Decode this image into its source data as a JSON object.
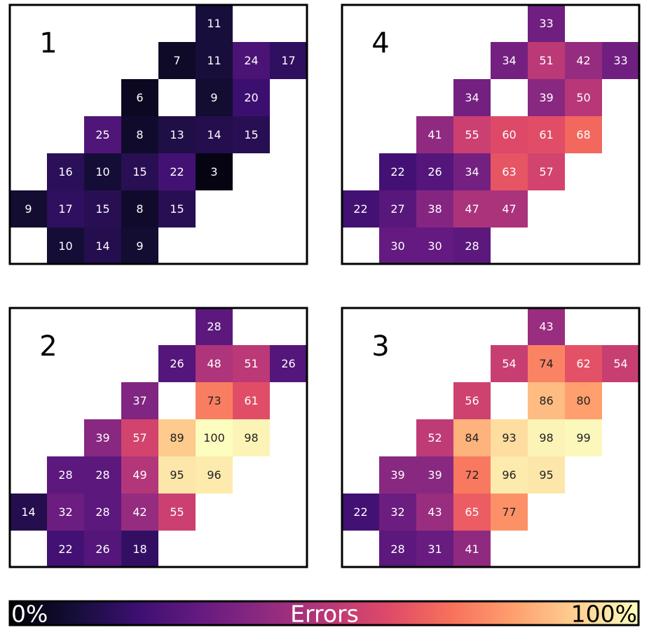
{
  "chart_data": {
    "type": "heatmap",
    "value_range": [
      0,
      100
    ],
    "colormap": "magma",
    "colorbar": {
      "label": "Errors",
      "min_label": "0%",
      "max_label": "100%",
      "colors": [
        "#000004",
        "#140e36",
        "#3b0f70",
        "#641a80",
        "#8c2981",
        "#b73779",
        "#de4968",
        "#f7705c",
        "#fe9f6d",
        "#fecf92",
        "#fcfdbf"
      ]
    },
    "panels": [
      {
        "label": "1",
        "cells": [
          {
            "row": 0,
            "col": 5,
            "value": 11
          },
          {
            "row": 1,
            "col": 4,
            "value": 7
          },
          {
            "row": 1,
            "col": 5,
            "value": 11
          },
          {
            "row": 1,
            "col": 6,
            "value": 24
          },
          {
            "row": 1,
            "col": 7,
            "value": 17
          },
          {
            "row": 2,
            "col": 3,
            "value": 6
          },
          {
            "row": 2,
            "col": 5,
            "value": 9
          },
          {
            "row": 2,
            "col": 6,
            "value": 20
          },
          {
            "row": 3,
            "col": 2,
            "value": 25
          },
          {
            "row": 3,
            "col": 3,
            "value": 8
          },
          {
            "row": 3,
            "col": 4,
            "value": 13
          },
          {
            "row": 3,
            "col": 5,
            "value": 14
          },
          {
            "row": 3,
            "col": 6,
            "value": 15
          },
          {
            "row": 4,
            "col": 1,
            "value": 16
          },
          {
            "row": 4,
            "col": 2,
            "value": 10
          },
          {
            "row": 4,
            "col": 3,
            "value": 15
          },
          {
            "row": 4,
            "col": 4,
            "value": 22
          },
          {
            "row": 4,
            "col": 5,
            "value": 3
          },
          {
            "row": 5,
            "col": 0,
            "value": 9
          },
          {
            "row": 5,
            "col": 1,
            "value": 17
          },
          {
            "row": 5,
            "col": 2,
            "value": 15
          },
          {
            "row": 5,
            "col": 3,
            "value": 8
          },
          {
            "row": 5,
            "col": 4,
            "value": 15
          },
          {
            "row": 6,
            "col": 1,
            "value": 10
          },
          {
            "row": 6,
            "col": 2,
            "value": 14
          },
          {
            "row": 6,
            "col": 3,
            "value": 9
          }
        ]
      },
      {
        "label": "4",
        "cells": [
          {
            "row": 0,
            "col": 5,
            "value": 33
          },
          {
            "row": 1,
            "col": 4,
            "value": 34
          },
          {
            "row": 1,
            "col": 5,
            "value": 51
          },
          {
            "row": 1,
            "col": 6,
            "value": 42
          },
          {
            "row": 1,
            "col": 7,
            "value": 33
          },
          {
            "row": 2,
            "col": 3,
            "value": 34
          },
          {
            "row": 2,
            "col": 5,
            "value": 39
          },
          {
            "row": 2,
            "col": 6,
            "value": 50
          },
          {
            "row": 3,
            "col": 2,
            "value": 41
          },
          {
            "row": 3,
            "col": 3,
            "value": 55
          },
          {
            "row": 3,
            "col": 4,
            "value": 60
          },
          {
            "row": 3,
            "col": 5,
            "value": 61
          },
          {
            "row": 3,
            "col": 6,
            "value": 68
          },
          {
            "row": 4,
            "col": 1,
            "value": 22
          },
          {
            "row": 4,
            "col": 2,
            "value": 26
          },
          {
            "row": 4,
            "col": 3,
            "value": 34
          },
          {
            "row": 4,
            "col": 4,
            "value": 63
          },
          {
            "row": 4,
            "col": 5,
            "value": 57
          },
          {
            "row": 5,
            "col": 0,
            "value": 22
          },
          {
            "row": 5,
            "col": 1,
            "value": 27
          },
          {
            "row": 5,
            "col": 2,
            "value": 38
          },
          {
            "row": 5,
            "col": 3,
            "value": 47
          },
          {
            "row": 5,
            "col": 4,
            "value": 47
          },
          {
            "row": 6,
            "col": 1,
            "value": 30
          },
          {
            "row": 6,
            "col": 2,
            "value": 30
          },
          {
            "row": 6,
            "col": 3,
            "value": 28
          }
        ]
      },
      {
        "label": "2",
        "cells": [
          {
            "row": 0,
            "col": 5,
            "value": 28
          },
          {
            "row": 1,
            "col": 4,
            "value": 26
          },
          {
            "row": 1,
            "col": 5,
            "value": 48
          },
          {
            "row": 1,
            "col": 6,
            "value": 51
          },
          {
            "row": 1,
            "col": 7,
            "value": 26
          },
          {
            "row": 2,
            "col": 3,
            "value": 37
          },
          {
            "row": 2,
            "col": 5,
            "value": 73
          },
          {
            "row": 2,
            "col": 6,
            "value": 61
          },
          {
            "row": 3,
            "col": 2,
            "value": 39
          },
          {
            "row": 3,
            "col": 3,
            "value": 57
          },
          {
            "row": 3,
            "col": 4,
            "value": 89
          },
          {
            "row": 3,
            "col": 5,
            "value": 100
          },
          {
            "row": 3,
            "col": 6,
            "value": 98
          },
          {
            "row": 4,
            "col": 1,
            "value": 28
          },
          {
            "row": 4,
            "col": 2,
            "value": 28
          },
          {
            "row": 4,
            "col": 3,
            "value": 49
          },
          {
            "row": 4,
            "col": 4,
            "value": 95
          },
          {
            "row": 4,
            "col": 5,
            "value": 96
          },
          {
            "row": 5,
            "col": 0,
            "value": 14
          },
          {
            "row": 5,
            "col": 1,
            "value": 32
          },
          {
            "row": 5,
            "col": 2,
            "value": 28
          },
          {
            "row": 5,
            "col": 3,
            "value": 42
          },
          {
            "row": 5,
            "col": 4,
            "value": 55
          },
          {
            "row": 6,
            "col": 1,
            "value": 22
          },
          {
            "row": 6,
            "col": 2,
            "value": 26
          },
          {
            "row": 6,
            "col": 3,
            "value": 18
          }
        ]
      },
      {
        "label": "3",
        "cells": [
          {
            "row": 0,
            "col": 5,
            "value": 43
          },
          {
            "row": 1,
            "col": 4,
            "value": 54
          },
          {
            "row": 1,
            "col": 5,
            "value": 74
          },
          {
            "row": 1,
            "col": 6,
            "value": 62
          },
          {
            "row": 1,
            "col": 7,
            "value": 54
          },
          {
            "row": 2,
            "col": 3,
            "value": 56
          },
          {
            "row": 2,
            "col": 5,
            "value": 86
          },
          {
            "row": 2,
            "col": 6,
            "value": 80
          },
          {
            "row": 3,
            "col": 2,
            "value": 52
          },
          {
            "row": 3,
            "col": 3,
            "value": 84
          },
          {
            "row": 3,
            "col": 4,
            "value": 93
          },
          {
            "row": 3,
            "col": 5,
            "value": 98
          },
          {
            "row": 3,
            "col": 6,
            "value": 99
          },
          {
            "row": 4,
            "col": 1,
            "value": 39
          },
          {
            "row": 4,
            "col": 2,
            "value": 39
          },
          {
            "row": 4,
            "col": 3,
            "value": 72
          },
          {
            "row": 4,
            "col": 4,
            "value": 96
          },
          {
            "row": 4,
            "col": 5,
            "value": 95
          },
          {
            "row": 5,
            "col": 0,
            "value": 22
          },
          {
            "row": 5,
            "col": 1,
            "value": 32
          },
          {
            "row": 5,
            "col": 2,
            "value": 43
          },
          {
            "row": 5,
            "col": 3,
            "value": 65
          },
          {
            "row": 5,
            "col": 4,
            "value": 77
          },
          {
            "row": 6,
            "col": 1,
            "value": 28
          },
          {
            "row": 6,
            "col": 2,
            "value": 31
          },
          {
            "row": 6,
            "col": 3,
            "value": 41
          }
        ]
      }
    ]
  }
}
